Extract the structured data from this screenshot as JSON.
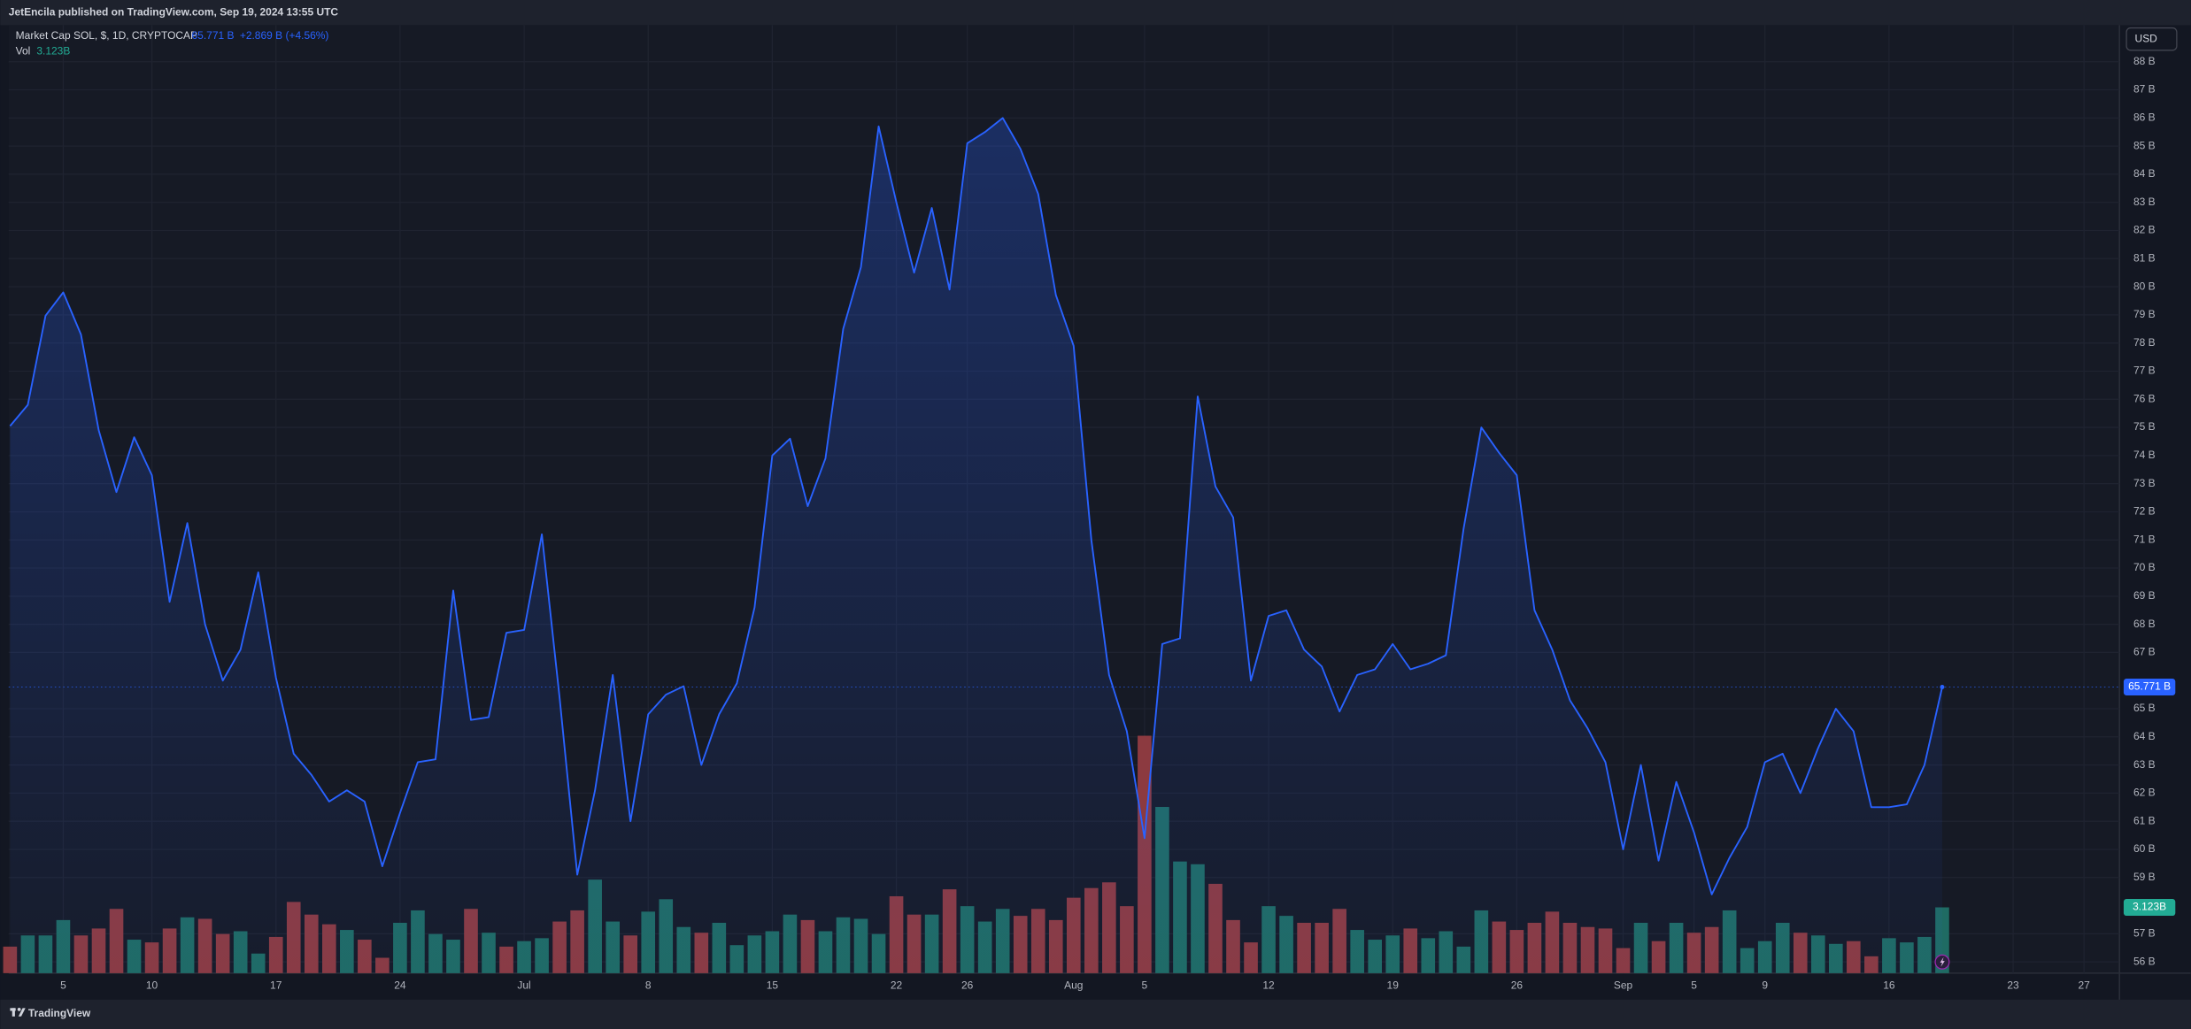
{
  "header": {
    "title": "JetEncila published on TradingView.com, Sep 19, 2024 13:55 UTC"
  },
  "footer": {
    "brand": "TradingView"
  },
  "legend": {
    "symbol": "Market Cap SOL, $, 1D, CRYPTOCAP",
    "last": "65.771 B",
    "change": "+2.869 B (+4.56%)",
    "vol_name": "Vol",
    "vol": "3.123B"
  },
  "currency": "USD",
  "chart_data": {
    "type": "area",
    "x": [
      "2024-06-02",
      "2024-06-03",
      "2024-06-04",
      "2024-06-05",
      "2024-06-06",
      "2024-06-07",
      "2024-06-08",
      "2024-06-09",
      "2024-06-10",
      "2024-06-11",
      "2024-06-12",
      "2024-06-13",
      "2024-06-14",
      "2024-06-15",
      "2024-06-16",
      "2024-06-17",
      "2024-06-18",
      "2024-06-19",
      "2024-06-20",
      "2024-06-21",
      "2024-06-22",
      "2024-06-23",
      "2024-06-24",
      "2024-06-25",
      "2024-06-26",
      "2024-06-27",
      "2024-06-28",
      "2024-06-29",
      "2024-06-30",
      "2024-07-01",
      "2024-07-02",
      "2024-07-03",
      "2024-07-04",
      "2024-07-05",
      "2024-07-06",
      "2024-07-07",
      "2024-07-08",
      "2024-07-09",
      "2024-07-10",
      "2024-07-11",
      "2024-07-12",
      "2024-07-13",
      "2024-07-14",
      "2024-07-15",
      "2024-07-16",
      "2024-07-17",
      "2024-07-18",
      "2024-07-19",
      "2024-07-20",
      "2024-07-21",
      "2024-07-22",
      "2024-07-23",
      "2024-07-24",
      "2024-07-25",
      "2024-07-26",
      "2024-07-27",
      "2024-07-28",
      "2024-07-29",
      "2024-07-30",
      "2024-07-31",
      "2024-08-01",
      "2024-08-02",
      "2024-08-03",
      "2024-08-04",
      "2024-08-05",
      "2024-08-06",
      "2024-08-07",
      "2024-08-08",
      "2024-08-09",
      "2024-08-10",
      "2024-08-11",
      "2024-08-12",
      "2024-08-13",
      "2024-08-14",
      "2024-08-15",
      "2024-08-16",
      "2024-08-17",
      "2024-08-18",
      "2024-08-19",
      "2024-08-20",
      "2024-08-21",
      "2024-08-22",
      "2024-08-23",
      "2024-08-24",
      "2024-08-25",
      "2024-08-26",
      "2024-08-27",
      "2024-08-28",
      "2024-08-29",
      "2024-08-30",
      "2024-08-31",
      "2024-09-01",
      "2024-09-02",
      "2024-09-03",
      "2024-09-04",
      "2024-09-05",
      "2024-09-06",
      "2024-09-07",
      "2024-09-08",
      "2024-09-09",
      "2024-09-10",
      "2024-09-11",
      "2024-09-12",
      "2024-09-13",
      "2024-09-14",
      "2024-09-15",
      "2024-09-16",
      "2024-09-17",
      "2024-09-18",
      "2024-09-19"
    ],
    "series": [
      {
        "name": "Market Cap SOL",
        "color": "#2962ff",
        "values": [
          75.05,
          75.8,
          78.97,
          79.8,
          78.3,
          74.9,
          72.7,
          74.65,
          73.3,
          68.8,
          71.6,
          68.0,
          66.0,
          67.1,
          69.85,
          66.1,
          63.4,
          62.65,
          61.7,
          62.1,
          61.7,
          59.4,
          61.3,
          63.1,
          63.2,
          69.2,
          64.6,
          64.7,
          67.7,
          67.8,
          71.2,
          65.4,
          59.1,
          62.1,
          66.2,
          61.0,
          64.8,
          65.5,
          65.8,
          63.0,
          64.8,
          65.9,
          68.6,
          74.0,
          74.6,
          72.2,
          73.9,
          78.5,
          80.7,
          85.7,
          83.0,
          80.5,
          82.8,
          79.9,
          85.1,
          85.5,
          86.0,
          84.9,
          83.3,
          79.7,
          77.9,
          71.0,
          66.2,
          64.2,
          60.4,
          67.3,
          67.5,
          76.1,
          72.9,
          71.8,
          66.0,
          68.3,
          68.5,
          67.1,
          66.5,
          64.9,
          66.2,
          66.4,
          67.3,
          66.4,
          66.6,
          66.9,
          71.4,
          75.0,
          74.1,
          73.3,
          68.5,
          67.1,
          65.3,
          64.3,
          63.1,
          60.0,
          63.0,
          59.6,
          62.4,
          60.6,
          58.4,
          59.7,
          60.8,
          63.1,
          63.4,
          62.0,
          63.6,
          65.0,
          64.2,
          61.5,
          61.5,
          61.6,
          63.0,
          65.771
        ]
      },
      {
        "name": "Vol",
        "axis": "y2",
        "values": [
          1.26,
          1.79,
          1.79,
          2.52,
          1.79,
          2.12,
          3.05,
          1.59,
          1.46,
          2.12,
          2.65,
          2.58,
          1.86,
          1.99,
          0.93,
          1.72,
          3.38,
          2.78,
          2.32,
          2.05,
          1.59,
          0.73,
          2.39,
          2.98,
          1.86,
          1.59,
          3.05,
          1.92,
          1.26,
          1.52,
          1.66,
          2.45,
          2.98,
          4.44,
          2.45,
          1.79,
          2.92,
          3.51,
          2.19,
          1.92,
          2.39,
          1.33,
          1.79,
          1.99,
          2.78,
          2.52,
          1.99,
          2.65,
          2.58,
          1.86,
          3.65,
          2.78,
          2.78,
          3.98,
          3.18,
          2.45,
          3.05,
          2.72,
          3.05,
          2.52,
          3.58,
          4.04,
          4.31,
          3.18,
          11.27,
          7.89,
          5.3,
          5.17,
          4.24,
          2.52,
          1.46,
          3.18,
          2.72,
          2.39,
          2.39,
          3.05,
          2.05,
          1.59,
          1.79,
          2.12,
          1.66,
          1.99,
          1.26,
          2.98,
          2.45,
          2.05,
          2.39,
          2.92,
          2.39,
          2.19,
          2.12,
          1.19,
          2.39,
          1.52,
          2.39,
          1.92,
          2.19,
          2.98,
          1.19,
          1.52,
          2.39,
          1.92,
          1.79,
          1.39,
          1.52,
          0.8,
          1.66,
          1.46,
          1.72,
          3.123
        ],
        "colors": [
          "#8c3a40",
          "#1f6b63",
          "#1f6b63",
          "#1f6b63",
          "#8c3a40",
          "#8c3a40",
          "#8c3a40",
          "#1f6b63",
          "#8c3a40",
          "#8c3a40",
          "#1f6b63",
          "#8c3a40",
          "#8c3a40",
          "#1f6b63",
          "#1f6b63",
          "#8c3a40",
          "#8c3a40",
          "#8c3a40",
          "#8c3a40",
          "#1f6b63",
          "#8c3a40",
          "#8c3a40",
          "#1f6b63",
          "#1f6b63",
          "#1f6b63",
          "#1f6b63",
          "#8c3a40",
          "#1f6b63",
          "#8c3a40",
          "#1f6b63",
          "#1f6b63",
          "#8c3a40",
          "#8c3a40",
          "#1f6b63",
          "#1f6b63",
          "#8c3a40",
          "#1f6b63",
          "#1f6b63",
          "#1f6b63",
          "#8c3a40",
          "#1f6b63",
          "#1f6b63",
          "#1f6b63",
          "#1f6b63",
          "#1f6b63",
          "#8c3a40",
          "#1f6b63",
          "#1f6b63",
          "#1f6b63",
          "#1f6b63",
          "#8c3a40",
          "#8c3a40",
          "#1f6b63",
          "#8c3a40",
          "#1f6b63",
          "#1f6b63",
          "#1f6b63",
          "#8c3a40",
          "#8c3a40",
          "#8c3a40",
          "#8c3a40",
          "#8c3a40",
          "#8c3a40",
          "#8c3a40",
          "#8c3a40",
          "#1f6b63",
          "#1f6b63",
          "#1f6b63",
          "#8c3a40",
          "#8c3a40",
          "#8c3a40",
          "#1f6b63",
          "#1f6b63",
          "#8c3a40",
          "#8c3a40",
          "#8c3a40",
          "#1f6b63",
          "#1f6b63",
          "#1f6b63",
          "#8c3a40",
          "#1f6b63",
          "#1f6b63",
          "#1f6b63",
          "#1f6b63",
          "#8c3a40",
          "#8c3a40",
          "#8c3a40",
          "#8c3a40",
          "#8c3a40",
          "#8c3a40",
          "#8c3a40",
          "#8c3a40",
          "#1f6b63",
          "#8c3a40",
          "#1f6b63",
          "#8c3a40",
          "#8c3a40",
          "#1f6b63",
          "#1f6b63",
          "#1f6b63",
          "#1f6b63",
          "#8c3a40",
          "#1f6b63",
          "#1f6b63",
          "#8c3a40",
          "#8c3a40",
          "#1f6b63",
          "#1f6b63",
          "#1f6b63",
          "#1f6b63"
        ]
      }
    ],
    "xlim": [
      "2024-06-02",
      "2024-09-29"
    ],
    "xticks": [
      {
        "value": "2024-06-05",
        "label": "5"
      },
      {
        "value": "2024-06-10",
        "label": "10"
      },
      {
        "value": "2024-06-17",
        "label": "17"
      },
      {
        "value": "2024-06-24",
        "label": "24"
      },
      {
        "value": "2024-07-01",
        "label": "Jul"
      },
      {
        "value": "2024-07-08",
        "label": "8"
      },
      {
        "value": "2024-07-15",
        "label": "15"
      },
      {
        "value": "2024-07-22",
        "label": "22"
      },
      {
        "value": "2024-07-26",
        "label": "26"
      },
      {
        "value": "2024-08-01",
        "label": "Aug"
      },
      {
        "value": "2024-08-05",
        "label": "5"
      },
      {
        "value": "2024-08-12",
        "label": "12"
      },
      {
        "value": "2024-08-19",
        "label": "19"
      },
      {
        "value": "2024-08-26",
        "label": "26"
      },
      {
        "value": "2024-09-01",
        "label": "Sep"
      },
      {
        "value": "2024-09-05",
        "label": "5"
      },
      {
        "value": "2024-09-09",
        "label": "9"
      },
      {
        "value": "2024-09-16",
        "label": "16"
      },
      {
        "value": "2024-09-23",
        "label": "23"
      },
      {
        "value": "2024-09-27",
        "label": "27"
      }
    ],
    "ylim": [
      55.6,
      89.3
    ],
    "yticks": [
      {
        "value": 88,
        "label": "88 B"
      },
      {
        "value": 87,
        "label": "87 B"
      },
      {
        "value": 86,
        "label": "86 B"
      },
      {
        "value": 85,
        "label": "85 B"
      },
      {
        "value": 84,
        "label": "84 B"
      },
      {
        "value": 83,
        "label": "83 B"
      },
      {
        "value": 82,
        "label": "82 B"
      },
      {
        "value": 81,
        "label": "81 B"
      },
      {
        "value": 80,
        "label": "80 B"
      },
      {
        "value": 79,
        "label": "79 B"
      },
      {
        "value": 78,
        "label": "78 B"
      },
      {
        "value": 77,
        "label": "77 B"
      },
      {
        "value": 76,
        "label": "76 B"
      },
      {
        "value": 75,
        "label": "75 B"
      },
      {
        "value": 74,
        "label": "74 B"
      },
      {
        "value": 73,
        "label": "73 B"
      },
      {
        "value": 72,
        "label": "72 B"
      },
      {
        "value": 71,
        "label": "71 B"
      },
      {
        "value": 70,
        "label": "70 B"
      },
      {
        "value": 69,
        "label": "69 B"
      },
      {
        "value": 68,
        "label": "68 B"
      },
      {
        "value": 67,
        "label": "67 B"
      },
      {
        "value": 65,
        "label": "65 B"
      },
      {
        "value": 64,
        "label": "64 B"
      },
      {
        "value": 63,
        "label": "63 B"
      },
      {
        "value": 62,
        "label": "62 B"
      },
      {
        "value": 61,
        "label": "61 B"
      },
      {
        "value": 60,
        "label": "60 B"
      },
      {
        "value": 59,
        "label": "59 B"
      },
      {
        "value": 57,
        "label": "57 B"
      },
      {
        "value": 56,
        "label": "56 B"
      }
    ],
    "y2lim": [
      0,
      45
    ],
    "grid": true
  }
}
